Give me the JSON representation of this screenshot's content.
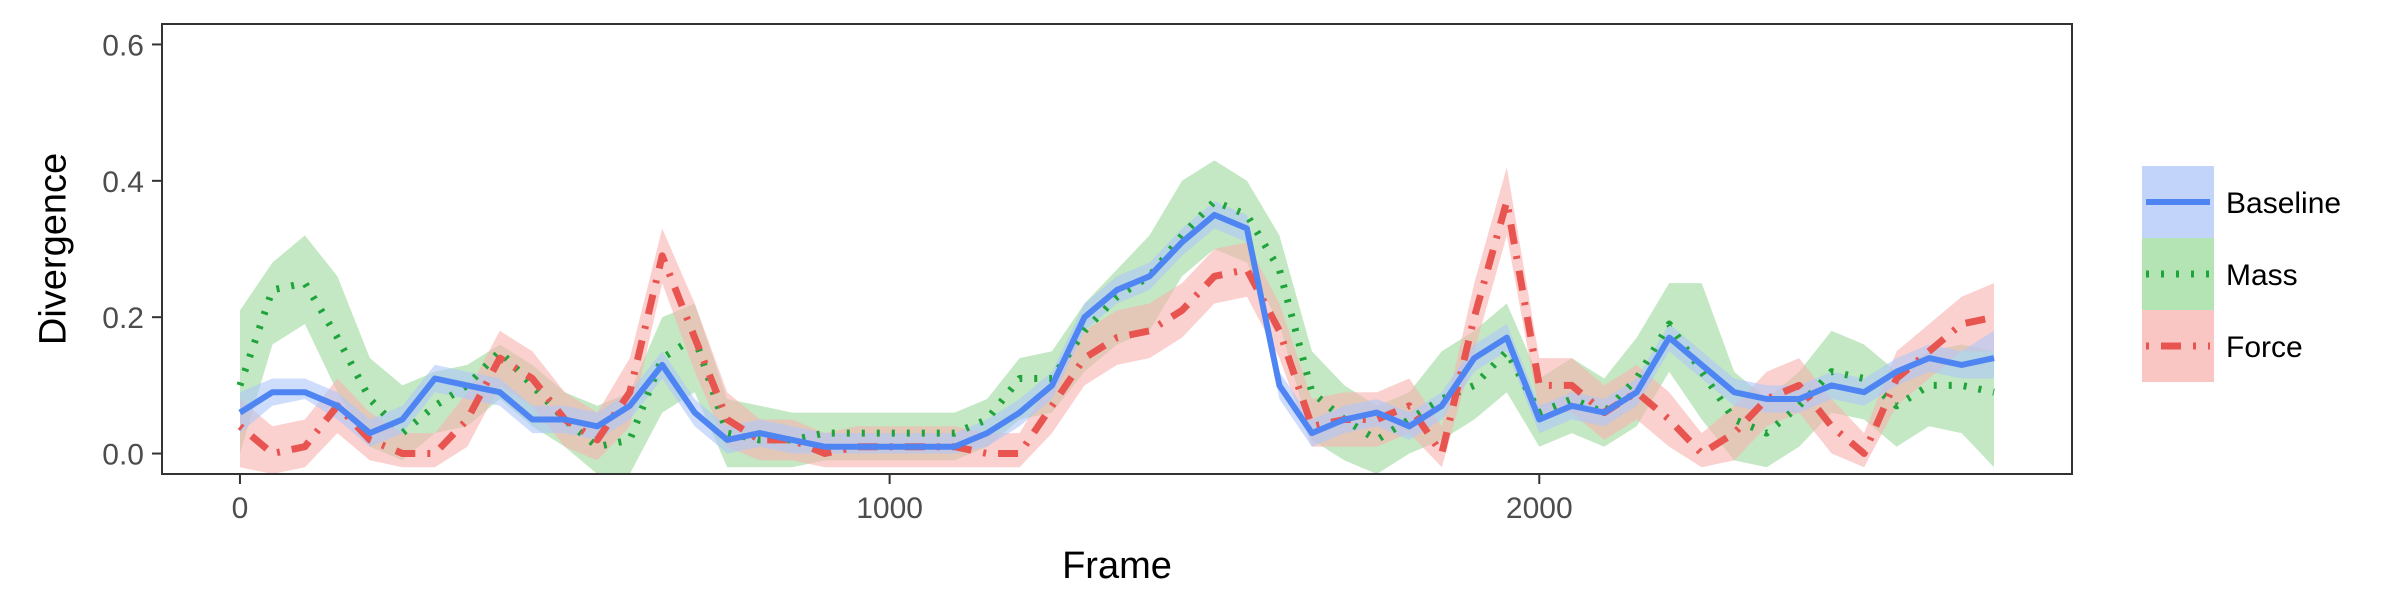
{
  "chart_data": {
    "type": "line",
    "xlabel": "Frame",
    "ylabel": "Divergence",
    "xlim": [
      -120,
      2820
    ],
    "ylim": [
      -0.03,
      0.63
    ],
    "xticks": [
      0,
      1000,
      2000
    ],
    "xtick_labels": [
      "0",
      "1000",
      "2000"
    ],
    "yticks": [
      0.0,
      0.2,
      0.4,
      0.6
    ],
    "ytick_labels": [
      "0.0",
      "0.2",
      "0.4",
      "0.6"
    ],
    "grid": false,
    "legend_position": "right",
    "x": [
      0,
      50,
      100,
      150,
      200,
      250,
      300,
      350,
      400,
      450,
      500,
      550,
      600,
      650,
      700,
      750,
      800,
      850,
      900,
      950,
      1000,
      1050,
      1100,
      1150,
      1200,
      1250,
      1300,
      1350,
      1400,
      1450,
      1500,
      1550,
      1600,
      1650,
      1700,
      1750,
      1800,
      1850,
      1900,
      1950,
      2000,
      2050,
      2100,
      2150,
      2200,
      2250,
      2300,
      2350,
      2400,
      2450,
      2500,
      2550,
      2600,
      2650,
      2700
    ],
    "series": [
      {
        "name": "Baseline",
        "color": "#4f85f3",
        "band_color": "#aec6f8",
        "dash": "solid",
        "values": [
          0.06,
          0.09,
          0.09,
          0.07,
          0.03,
          0.05,
          0.11,
          0.1,
          0.09,
          0.05,
          0.05,
          0.04,
          0.07,
          0.13,
          0.06,
          0.02,
          0.03,
          0.02,
          0.01,
          0.01,
          0.01,
          0.01,
          0.01,
          0.03,
          0.06,
          0.1,
          0.2,
          0.24,
          0.26,
          0.31,
          0.35,
          0.33,
          0.1,
          0.03,
          0.05,
          0.06,
          0.04,
          0.07,
          0.14,
          0.17,
          0.05,
          0.07,
          0.06,
          0.09,
          0.17,
          0.13,
          0.09,
          0.08,
          0.08,
          0.1,
          0.09,
          0.12,
          0.14,
          0.13,
          0.14
        ],
        "lower": [
          0.03,
          0.07,
          0.08,
          0.05,
          0.01,
          0.03,
          0.09,
          0.08,
          0.07,
          0.03,
          0.03,
          0.02,
          0.05,
          0.11,
          0.04,
          0.0,
          0.01,
          0.0,
          0.0,
          0.0,
          0.0,
          0.0,
          0.0,
          0.01,
          0.04,
          0.08,
          0.18,
          0.22,
          0.24,
          0.29,
          0.33,
          0.31,
          0.08,
          0.01,
          0.03,
          0.04,
          0.02,
          0.05,
          0.12,
          0.15,
          0.03,
          0.05,
          0.04,
          0.07,
          0.15,
          0.11,
          0.07,
          0.06,
          0.06,
          0.08,
          0.07,
          0.1,
          0.12,
          0.11,
          0.11
        ],
        "upper": [
          0.09,
          0.11,
          0.11,
          0.09,
          0.05,
          0.07,
          0.13,
          0.12,
          0.11,
          0.07,
          0.07,
          0.06,
          0.09,
          0.15,
          0.08,
          0.04,
          0.05,
          0.04,
          0.03,
          0.03,
          0.03,
          0.03,
          0.03,
          0.05,
          0.08,
          0.12,
          0.22,
          0.26,
          0.28,
          0.33,
          0.37,
          0.35,
          0.12,
          0.05,
          0.07,
          0.08,
          0.06,
          0.09,
          0.16,
          0.19,
          0.07,
          0.09,
          0.08,
          0.11,
          0.19,
          0.15,
          0.11,
          0.1,
          0.1,
          0.12,
          0.11,
          0.14,
          0.16,
          0.15,
          0.18
        ]
      },
      {
        "name": "Mass",
        "color": "#1fa33b",
        "band_color": "#9bd99b",
        "dash": "dotted",
        "values": [
          0.1,
          0.24,
          0.25,
          0.17,
          0.08,
          0.03,
          0.07,
          0.1,
          0.15,
          0.1,
          0.05,
          0.01,
          0.02,
          0.14,
          0.17,
          0.03,
          0.02,
          0.02,
          0.03,
          0.03,
          0.03,
          0.03,
          0.03,
          0.05,
          0.11,
          0.11,
          0.18,
          0.23,
          0.26,
          0.32,
          0.37,
          0.35,
          0.27,
          0.09,
          0.05,
          0.02,
          0.05,
          0.08,
          0.1,
          0.15,
          0.06,
          0.08,
          0.06,
          0.11,
          0.19,
          0.12,
          0.05,
          0.03,
          0.07,
          0.12,
          0.11,
          0.07,
          0.1,
          0.1,
          0.09
        ],
        "lower": [
          0.0,
          0.16,
          0.19,
          0.09,
          0.01,
          -0.01,
          0.03,
          0.04,
          0.08,
          0.04,
          0.01,
          -0.03,
          -0.03,
          0.06,
          0.09,
          -0.02,
          -0.02,
          -0.02,
          -0.01,
          -0.01,
          -0.01,
          -0.01,
          -0.01,
          0.01,
          0.05,
          0.06,
          0.12,
          0.16,
          0.18,
          0.26,
          0.3,
          0.28,
          0.19,
          0.02,
          -0.01,
          -0.03,
          0.0,
          0.02,
          0.05,
          0.09,
          0.01,
          0.03,
          0.01,
          0.04,
          0.12,
          0.05,
          -0.01,
          -0.02,
          0.01,
          0.06,
          0.05,
          0.01,
          0.04,
          0.03,
          -0.02
        ],
        "upper": [
          0.21,
          0.28,
          0.32,
          0.26,
          0.14,
          0.1,
          0.12,
          0.13,
          0.16,
          0.13,
          0.09,
          0.07,
          0.09,
          0.2,
          0.22,
          0.08,
          0.07,
          0.06,
          0.06,
          0.06,
          0.06,
          0.06,
          0.06,
          0.08,
          0.14,
          0.15,
          0.22,
          0.27,
          0.32,
          0.4,
          0.43,
          0.4,
          0.32,
          0.15,
          0.1,
          0.07,
          0.09,
          0.15,
          0.18,
          0.22,
          0.11,
          0.14,
          0.11,
          0.17,
          0.25,
          0.25,
          0.12,
          0.08,
          0.12,
          0.18,
          0.16,
          0.12,
          0.15,
          0.16,
          0.15
        ]
      },
      {
        "name": "Force",
        "color": "#e8544f",
        "band_color": "#f8b3b0",
        "dash": "dotdash",
        "values": [
          0.04,
          0.0,
          0.01,
          0.07,
          0.02,
          0.0,
          0.0,
          0.05,
          0.14,
          0.11,
          0.05,
          0.02,
          0.09,
          0.29,
          0.17,
          0.05,
          0.02,
          0.02,
          0.0,
          0.01,
          0.01,
          0.01,
          0.01,
          0.0,
          0.0,
          0.07,
          0.14,
          0.17,
          0.18,
          0.21,
          0.26,
          0.27,
          0.18,
          0.04,
          0.05,
          0.05,
          0.07,
          0.0,
          0.2,
          0.37,
          0.1,
          0.1,
          0.06,
          0.09,
          0.05,
          0.0,
          0.03,
          0.08,
          0.1,
          0.04,
          0.0,
          0.11,
          0.15,
          0.19,
          0.2
        ],
        "lower": [
          -0.02,
          -0.03,
          -0.02,
          0.03,
          -0.01,
          -0.02,
          -0.02,
          0.01,
          0.1,
          0.07,
          0.01,
          -0.01,
          0.04,
          0.25,
          0.12,
          0.01,
          -0.01,
          -0.01,
          -0.02,
          -0.02,
          -0.02,
          -0.02,
          -0.02,
          -0.02,
          -0.02,
          0.03,
          0.1,
          0.13,
          0.14,
          0.17,
          0.22,
          0.23,
          0.14,
          0.01,
          0.01,
          0.01,
          0.03,
          -0.02,
          0.15,
          0.32,
          0.06,
          0.06,
          0.02,
          0.05,
          0.01,
          -0.02,
          -0.01,
          0.04,
          0.06,
          0.0,
          -0.02,
          0.07,
          0.11,
          0.15,
          0.15
        ],
        "upper": [
          0.08,
          0.04,
          0.05,
          0.11,
          0.06,
          0.03,
          0.03,
          0.09,
          0.18,
          0.15,
          0.09,
          0.06,
          0.14,
          0.33,
          0.22,
          0.09,
          0.05,
          0.05,
          0.03,
          0.04,
          0.04,
          0.04,
          0.04,
          0.03,
          0.03,
          0.11,
          0.18,
          0.21,
          0.22,
          0.25,
          0.3,
          0.31,
          0.22,
          0.08,
          0.09,
          0.09,
          0.11,
          0.04,
          0.25,
          0.42,
          0.14,
          0.14,
          0.1,
          0.13,
          0.09,
          0.03,
          0.07,
          0.12,
          0.14,
          0.08,
          0.03,
          0.15,
          0.19,
          0.23,
          0.25
        ]
      }
    ]
  }
}
